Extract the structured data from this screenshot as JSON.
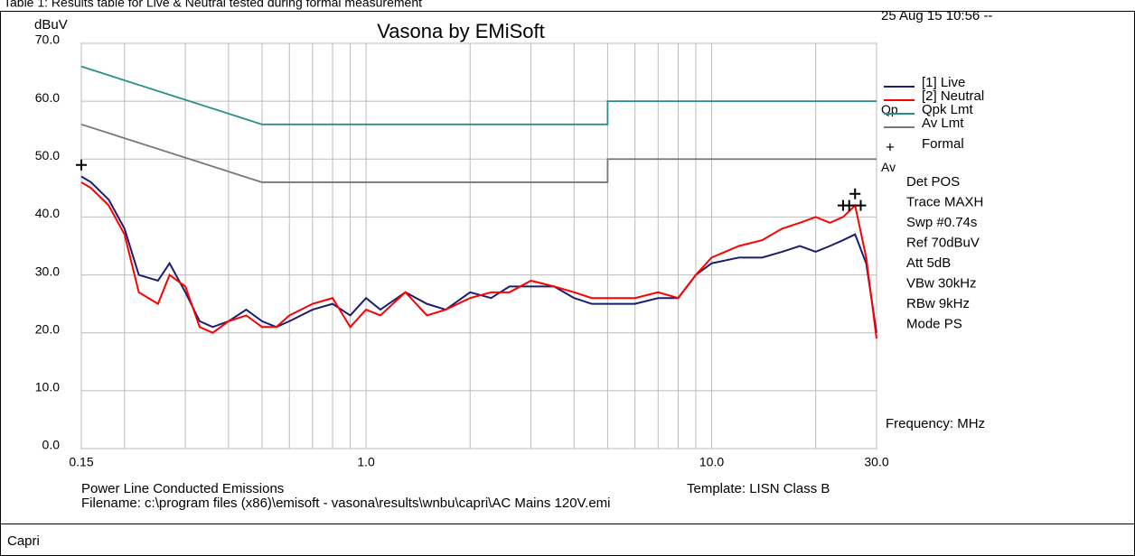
{
  "caption_top": "Table 1: Results table for Live & Neutral tested during formal measurement",
  "caption_row": "Capri",
  "chart_data": {
    "type": "line",
    "title": "Vasona by EMiSoft",
    "ylabel": "dBuV",
    "xlabel": "Frequency: MHz",
    "timestamp": "25 Aug 15 10:56 --",
    "log_x": true,
    "grid": true,
    "xlim": [
      0.15,
      30
    ],
    "ylim": [
      0,
      70
    ],
    "xticks": [
      {
        "value": 0.15,
        "label": "0.15"
      },
      {
        "value": 1,
        "label": "1.0"
      },
      {
        "value": 10,
        "label": "10.0"
      },
      {
        "value": 30,
        "label": "30.0"
      }
    ],
    "xminor": [
      0.2,
      0.3,
      0.4,
      0.5,
      0.6,
      0.7,
      0.8,
      0.9,
      2,
      3,
      4,
      5,
      6,
      7,
      8,
      9,
      20
    ],
    "yticks": [
      {
        "value": 0,
        "label": "0.0"
      },
      {
        "value": 10,
        "label": "10.0"
      },
      {
        "value": 20,
        "label": "20.0"
      },
      {
        "value": 30,
        "label": "30.0"
      },
      {
        "value": 40,
        "label": "40.0"
      },
      {
        "value": 50,
        "label": "50.0"
      },
      {
        "value": 60,
        "label": "60.0"
      },
      {
        "value": 70,
        "label": "70.0"
      }
    ],
    "series": [
      {
        "name": "[1] Live",
        "color": "#1c1c70",
        "x": [
          0.15,
          0.16,
          0.18,
          0.2,
          0.22,
          0.25,
          0.27,
          0.3,
          0.33,
          0.36,
          0.4,
          0.45,
          0.5,
          0.55,
          0.6,
          0.7,
          0.8,
          0.9,
          1.0,
          1.1,
          1.3,
          1.5,
          1.7,
          2.0,
          2.3,
          2.6,
          3.0,
          3.5,
          4.0,
          4.5,
          5,
          6,
          7,
          8,
          9,
          10,
          12,
          14,
          16,
          18,
          20,
          22,
          24,
          26,
          28,
          30
        ],
        "values": [
          47,
          46,
          43,
          38,
          30,
          29,
          32,
          27,
          22,
          21,
          22,
          24,
          22,
          21,
          22,
          24,
          25,
          23,
          26,
          24,
          27,
          25,
          24,
          27,
          26,
          28,
          28,
          28,
          26,
          25,
          25,
          25,
          26,
          26,
          30,
          32,
          33,
          33,
          34,
          35,
          34,
          35,
          36,
          37,
          32,
          20
        ]
      },
      {
        "name": "[2] Neutral",
        "color": "#ff0000",
        "x": [
          0.15,
          0.16,
          0.18,
          0.2,
          0.22,
          0.25,
          0.27,
          0.3,
          0.33,
          0.36,
          0.4,
          0.45,
          0.5,
          0.55,
          0.6,
          0.7,
          0.8,
          0.9,
          1.0,
          1.1,
          1.3,
          1.5,
          1.7,
          2.0,
          2.3,
          2.6,
          3.0,
          3.5,
          4.0,
          4.5,
          5,
          6,
          7,
          8,
          9,
          10,
          12,
          14,
          16,
          18,
          20,
          22,
          24,
          26,
          28,
          30
        ],
        "values": [
          46,
          45,
          42,
          37,
          27,
          25,
          30,
          28,
          21,
          20,
          22,
          23,
          21,
          21,
          23,
          25,
          26,
          21,
          24,
          23,
          27,
          23,
          24,
          26,
          27,
          27,
          29,
          28,
          27,
          26,
          26,
          26,
          27,
          26,
          30,
          33,
          35,
          36,
          38,
          39,
          40,
          39,
          40,
          42,
          33,
          19
        ]
      },
      {
        "name": "Qpk Lmt",
        "color": "#2a8c8c",
        "tag": "Qp",
        "x": [
          0.15,
          0.5,
          5,
          5,
          30
        ],
        "values": [
          66,
          56,
          56,
          60,
          60
        ]
      },
      {
        "name": "Av Lmt",
        "color": "#777777",
        "tag": "Av",
        "x": [
          0.15,
          0.5,
          5,
          5,
          30
        ],
        "values": [
          56,
          46,
          46,
          50,
          50
        ]
      },
      {
        "name": "Formal",
        "color": "#000000",
        "marker": "+",
        "x": [
          0.15,
          24,
          25,
          26,
          27
        ],
        "values": [
          49,
          42,
          42,
          44,
          42
        ]
      }
    ],
    "settings": [
      "Det POS",
      "Trace MAXH",
      "Swp #0.74s",
      "Ref 70dBuV",
      "Att 5dB",
      "VBw 30kHz",
      "RBw 9kHz",
      "Mode PS"
    ],
    "footer_left": "Power Line Conducted Emissions",
    "footer_right": "Template: LISN Class B",
    "filename": "Filename: c:\\program files (x86)\\emisoft - vasona\\results\\wnbu\\capri\\AC Mains 120V.emi"
  }
}
